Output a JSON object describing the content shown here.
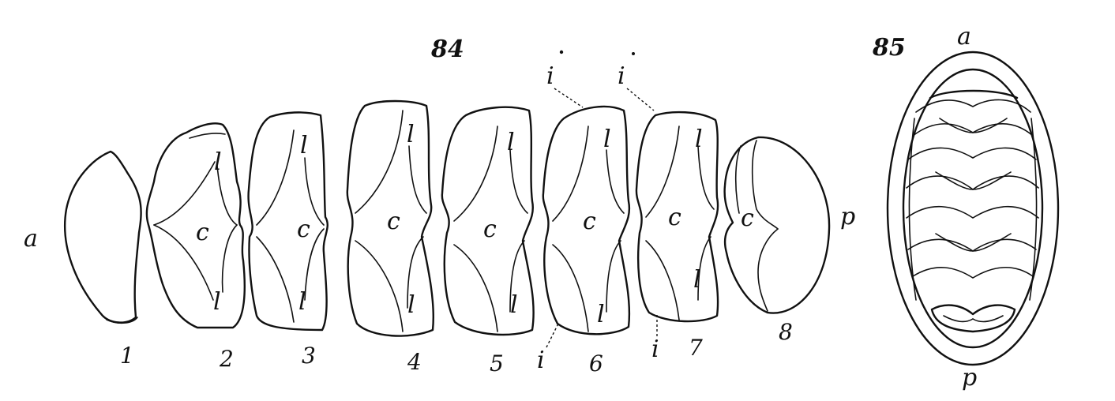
{
  "figures": {
    "fig84": {
      "number": "84",
      "end_labels": {
        "anterior": "a",
        "posterior": "p"
      },
      "plates": [
        {
          "number": "1",
          "labels": []
        },
        {
          "number": "2",
          "labels": [
            "l",
            "c",
            "l"
          ]
        },
        {
          "number": "3",
          "labels": [
            "l",
            "c",
            "l"
          ]
        },
        {
          "number": "4",
          "labels": [
            "l",
            "c",
            "l"
          ]
        },
        {
          "number": "5",
          "labels": [
            "l",
            "c",
            "l"
          ]
        },
        {
          "number": "6",
          "labels": [
            "l",
            "c",
            "l"
          ]
        },
        {
          "number": "7",
          "labels": [
            "l",
            "c",
            "l"
          ]
        },
        {
          "number": "8",
          "labels": [
            "c"
          ]
        }
      ],
      "insertion_label": "i"
    },
    "fig85": {
      "number": "85",
      "end_labels": {
        "anterior": "a",
        "posterior": "p"
      }
    }
  },
  "colors": {
    "ink": "#111111",
    "paper": "#ffffff"
  }
}
